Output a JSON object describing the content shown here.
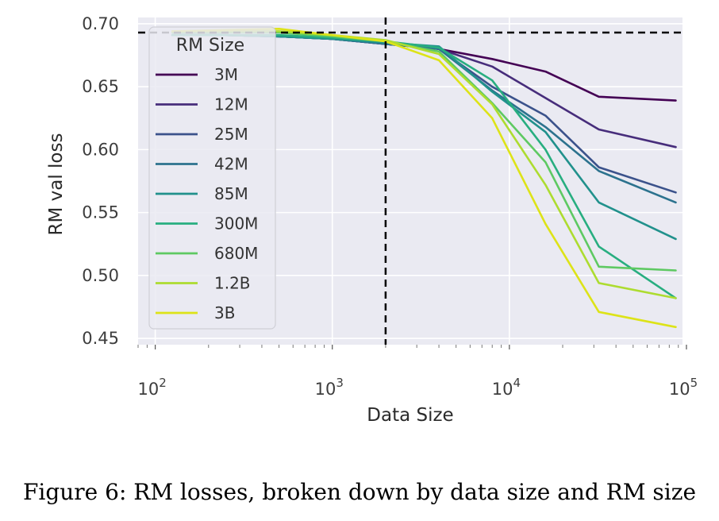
{
  "caption": "Figure 6: RM losses, broken down by data size and RM size",
  "chart_data": {
    "type": "line",
    "title": "",
    "xlabel": "Data Size",
    "ylabel": "RM val loss",
    "xscale": "log",
    "xlim": [
      80,
      95000
    ],
    "ylim": [
      0.445,
      0.705
    ],
    "xticks": [
      {
        "value": 100,
        "base": "10",
        "exp": "2"
      },
      {
        "value": 1000,
        "base": "10",
        "exp": "3"
      },
      {
        "value": 10000,
        "base": "10",
        "exp": "4"
      },
      {
        "value": 100000,
        "base": "10",
        "exp": "5"
      }
    ],
    "yticks": [
      {
        "value": 0.45,
        "label": "0.45"
      },
      {
        "value": 0.5,
        "label": "0.50"
      },
      {
        "value": 0.55,
        "label": "0.55"
      },
      {
        "value": 0.6,
        "label": "0.60"
      },
      {
        "value": 0.65,
        "label": "0.65"
      },
      {
        "value": 0.7,
        "label": "0.70"
      }
    ],
    "grid": true,
    "background": "#eaeaf2",
    "grid_color": "#ffffff",
    "reference_lines": {
      "x": 2000,
      "y": 0.693,
      "style": "dashed",
      "color": "#000000"
    },
    "legend": {
      "title": "RM Size",
      "placement": "upper-left"
    },
    "x": [
      125,
      250,
      500,
      1000,
      2000,
      4000,
      8000,
      16000,
      32000,
      87000
    ],
    "series": [
      {
        "name": "3M",
        "color": "#440154",
        "values": [
          0.691,
          0.691,
          0.69,
          0.688,
          0.684,
          0.68,
          0.672,
          0.662,
          0.642,
          0.639
        ]
      },
      {
        "name": "12M",
        "color": "#472d7b",
        "values": [
          0.691,
          0.691,
          0.69,
          0.688,
          0.684,
          0.68,
          0.666,
          0.641,
          0.616,
          0.602
        ]
      },
      {
        "name": "25M",
        "color": "#3b528b",
        "values": [
          0.691,
          0.691,
          0.69,
          0.688,
          0.684,
          0.68,
          0.65,
          0.627,
          0.586,
          0.566
        ]
      },
      {
        "name": "42M",
        "color": "#2c728e",
        "values": [
          0.691,
          0.691,
          0.69,
          0.688,
          0.684,
          0.68,
          0.647,
          0.618,
          0.583,
          0.558
        ]
      },
      {
        "name": "85M",
        "color": "#21918c",
        "values": [
          0.691,
          0.691,
          0.69,
          0.688,
          0.685,
          0.682,
          0.646,
          0.614,
          0.558,
          0.529
        ]
      },
      {
        "name": "300M",
        "color": "#28ae80",
        "values": [
          0.691,
          0.691,
          0.691,
          0.689,
          0.686,
          0.681,
          0.655,
          0.6,
          0.523,
          0.482
        ]
      },
      {
        "name": "680M",
        "color": "#5ec962",
        "values": [
          0.693,
          0.693,
          0.693,
          0.69,
          0.686,
          0.678,
          0.637,
          0.59,
          0.507,
          0.504
        ]
      },
      {
        "name": "1.2B",
        "color": "#addc30",
        "values": [
          0.694,
          0.694,
          0.694,
          0.691,
          0.687,
          0.676,
          0.636,
          0.572,
          0.494,
          0.482
        ]
      },
      {
        "name": "3B",
        "color": "#dde318",
        "values": [
          0.694,
          0.695,
          0.696,
          0.691,
          0.686,
          0.671,
          0.625,
          0.541,
          0.471,
          0.459
        ]
      }
    ]
  }
}
